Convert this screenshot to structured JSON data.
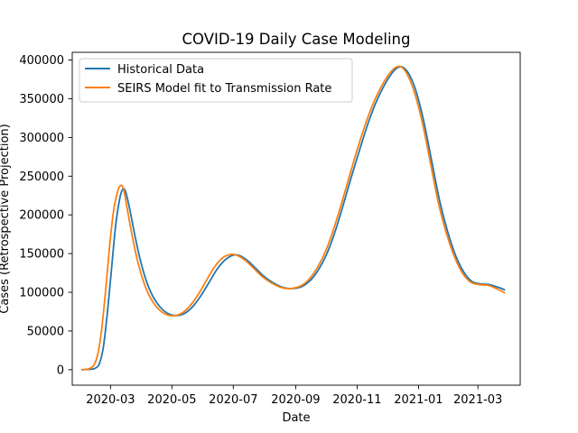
{
  "chart_data": {
    "type": "line",
    "title": "COVID-19 Daily Case Modeling",
    "xlabel": "Date",
    "ylabel": "Cases (Retrospective Projection)",
    "xlim": [
      "2020-01-23",
      "2021-04-12"
    ],
    "ylim": [
      -20000,
      410000
    ],
    "x_ticks": [
      "2020-03-01",
      "2020-05-01",
      "2020-07-01",
      "2020-09-01",
      "2020-11-01",
      "2021-01-01",
      "2021-03-01"
    ],
    "x_tick_labels": [
      "2020-03",
      "2020-05",
      "2020-07",
      "2020-09",
      "2020-11",
      "2021-01",
      "2021-03"
    ],
    "y_ticks": [
      0,
      50000,
      100000,
      150000,
      200000,
      250000,
      300000,
      350000,
      400000
    ],
    "y_tick_labels": [
      "0",
      "50000",
      "100000",
      "150000",
      "200000",
      "250000",
      "300000",
      "350000",
      "400000"
    ],
    "grid": false,
    "legend_position": "upper-left",
    "series": [
      {
        "name": "Historical Data",
        "color": "#1f77b4",
        "points": [
          [
            "2020-02-01",
            0
          ],
          [
            "2020-02-10",
            500
          ],
          [
            "2020-02-15",
            2000
          ],
          [
            "2020-02-19",
            8000
          ],
          [
            "2020-02-23",
            30000
          ],
          [
            "2020-02-27",
            75000
          ],
          [
            "2020-03-02",
            130000
          ],
          [
            "2020-03-06",
            185000
          ],
          [
            "2020-03-10",
            220000
          ],
          [
            "2020-03-13",
            233000
          ],
          [
            "2020-03-16",
            230000
          ],
          [
            "2020-03-20",
            208000
          ],
          [
            "2020-03-25",
            175000
          ],
          [
            "2020-03-30",
            145000
          ],
          [
            "2020-04-05",
            117000
          ],
          [
            "2020-04-12",
            95000
          ],
          [
            "2020-04-20",
            80000
          ],
          [
            "2020-04-28",
            72000
          ],
          [
            "2020-05-06",
            70000
          ],
          [
            "2020-05-14",
            73000
          ],
          [
            "2020-05-22",
            82000
          ],
          [
            "2020-05-30",
            96000
          ],
          [
            "2020-06-07",
            113000
          ],
          [
            "2020-06-15",
            130000
          ],
          [
            "2020-06-23",
            142000
          ],
          [
            "2020-07-01",
            148000
          ],
          [
            "2020-07-08",
            147000
          ],
          [
            "2020-07-16",
            140000
          ],
          [
            "2020-07-24",
            130000
          ],
          [
            "2020-08-01",
            120000
          ],
          [
            "2020-08-10",
            112000
          ],
          [
            "2020-08-20",
            106000
          ],
          [
            "2020-08-30",
            105000
          ],
          [
            "2020-09-08",
            108000
          ],
          [
            "2020-09-16",
            116000
          ],
          [
            "2020-09-24",
            130000
          ],
          [
            "2020-10-02",
            150000
          ],
          [
            "2020-10-10",
            178000
          ],
          [
            "2020-10-18",
            212000
          ],
          [
            "2020-10-26",
            248000
          ],
          [
            "2020-11-03",
            282000
          ],
          [
            "2020-11-11",
            315000
          ],
          [
            "2020-11-19",
            343000
          ],
          [
            "2020-11-27",
            365000
          ],
          [
            "2020-12-05",
            382000
          ],
          [
            "2020-12-11",
            390000
          ],
          [
            "2020-12-16",
            391000
          ],
          [
            "2020-12-22",
            383000
          ],
          [
            "2020-12-29",
            362000
          ],
          [
            "2021-01-06",
            322000
          ],
          [
            "2021-01-14",
            270000
          ],
          [
            "2021-01-22",
            218000
          ],
          [
            "2021-01-30",
            178000
          ],
          [
            "2021-02-07",
            147000
          ],
          [
            "2021-02-15",
            126000
          ],
          [
            "2021-02-23",
            114000
          ],
          [
            "2021-03-03",
            111000
          ],
          [
            "2021-03-12",
            110000
          ],
          [
            "2021-03-20",
            107000
          ],
          [
            "2021-03-28",
            103000
          ]
        ]
      },
      {
        "name": "SEIRS Model fit to Transmission Rate",
        "color": "#ff7f0e",
        "points": [
          [
            "2020-02-01",
            0
          ],
          [
            "2020-02-08",
            1000
          ],
          [
            "2020-02-13",
            5000
          ],
          [
            "2020-02-17",
            18000
          ],
          [
            "2020-02-21",
            50000
          ],
          [
            "2020-02-25",
            100000
          ],
          [
            "2020-02-29",
            158000
          ],
          [
            "2020-03-04",
            205000
          ],
          [
            "2020-03-08",
            230000
          ],
          [
            "2020-03-11",
            238000
          ],
          [
            "2020-03-14",
            233000
          ],
          [
            "2020-03-18",
            205000
          ],
          [
            "2020-03-23",
            170000
          ],
          [
            "2020-03-28",
            140000
          ],
          [
            "2020-04-03",
            113000
          ],
          [
            "2020-04-10",
            92000
          ],
          [
            "2020-04-18",
            78000
          ],
          [
            "2020-04-26",
            71000
          ],
          [
            "2020-05-04",
            70000
          ],
          [
            "2020-05-12",
            74000
          ],
          [
            "2020-05-20",
            84000
          ],
          [
            "2020-05-28",
            99000
          ],
          [
            "2020-06-05",
            117000
          ],
          [
            "2020-06-13",
            134000
          ],
          [
            "2020-06-21",
            145000
          ],
          [
            "2020-06-29",
            149000
          ],
          [
            "2020-07-06",
            147000
          ],
          [
            "2020-07-14",
            140000
          ],
          [
            "2020-07-22",
            130000
          ],
          [
            "2020-07-30",
            120000
          ],
          [
            "2020-08-08",
            112000
          ],
          [
            "2020-08-18",
            106000
          ],
          [
            "2020-08-28",
            105000
          ],
          [
            "2020-09-07",
            109000
          ],
          [
            "2020-09-15",
            118000
          ],
          [
            "2020-09-23",
            133000
          ],
          [
            "2020-10-01",
            154000
          ],
          [
            "2020-10-09",
            183000
          ],
          [
            "2020-10-17",
            217000
          ],
          [
            "2020-10-25",
            253000
          ],
          [
            "2020-11-02",
            288000
          ],
          [
            "2020-11-10",
            320000
          ],
          [
            "2020-11-18",
            347000
          ],
          [
            "2020-11-26",
            368000
          ],
          [
            "2020-12-04",
            384000
          ],
          [
            "2020-12-10",
            391000
          ],
          [
            "2020-12-15",
            391000
          ],
          [
            "2020-12-21",
            381000
          ],
          [
            "2020-12-28",
            358000
          ],
          [
            "2021-01-05",
            318000
          ],
          [
            "2021-01-13",
            266000
          ],
          [
            "2021-01-21",
            214000
          ],
          [
            "2021-01-29",
            175000
          ],
          [
            "2021-02-06",
            145000
          ],
          [
            "2021-02-14",
            124000
          ],
          [
            "2021-02-22",
            113000
          ],
          [
            "2021-03-02",
            110000
          ],
          [
            "2021-03-11",
            109000
          ],
          [
            "2021-03-19",
            105000
          ],
          [
            "2021-03-28",
            99000
          ]
        ]
      }
    ]
  }
}
